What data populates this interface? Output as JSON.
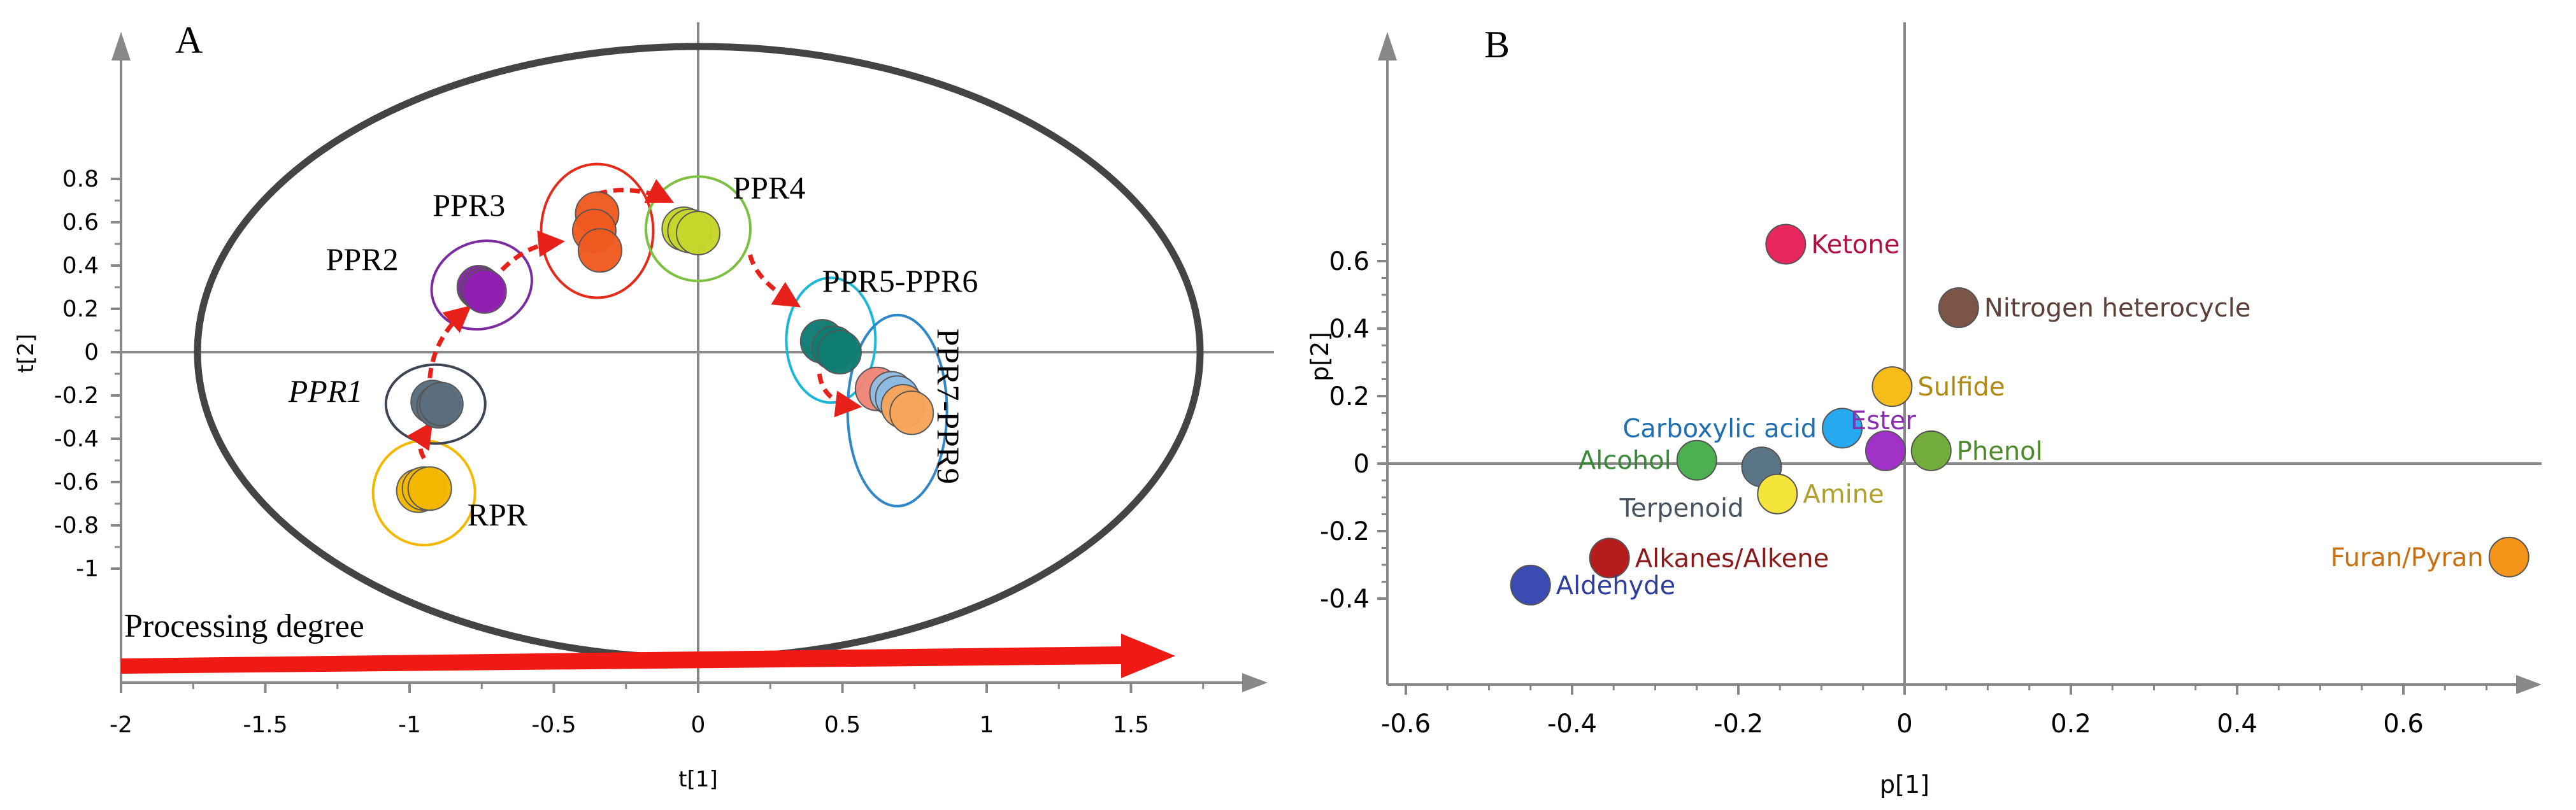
{
  "panels": {
    "A": {
      "label": "A",
      "x_title": "t[1]",
      "y_title": "t[2]",
      "x_ticks": [
        "-2",
        "-1.5",
        "-1",
        "-0.5",
        "0",
        "0.5",
        "1",
        "1.5"
      ],
      "y_ticks": [
        "0.8",
        "0.6",
        "0.4",
        "0.2",
        "0",
        "-0.2",
        "-0.4",
        "-0.6",
        "-0.8",
        "-1"
      ],
      "arrow_label": "Processing degree"
    },
    "B": {
      "label": "B",
      "x_title": "p[1]",
      "y_title": "p[2]",
      "x_ticks": [
        "-0.6",
        "-0.4",
        "-0.2",
        "0",
        "0.2",
        "0.4",
        "0.6"
      ],
      "y_ticks": [
        "0.6",
        "0.4",
        "0.2",
        "0",
        "-0.2",
        "-0.4"
      ]
    }
  },
  "chart_data": [
    {
      "type": "scatter",
      "panel": "A",
      "title": "",
      "xlabel": "t[1]",
      "ylabel": "t[2]",
      "xlim": [
        -2,
        1.8
      ],
      "ylim": [
        -1,
        0.9
      ],
      "grid": false,
      "groups": [
        {
          "name": "RPR",
          "color": "#f5b800",
          "ring": "#f5b800",
          "points": [
            [
              -0.97,
              -0.64
            ],
            [
              -0.95,
              -0.63
            ],
            [
              -0.93,
              -0.63
            ]
          ]
        },
        {
          "name": "PPR1",
          "color": "#5a6e7d",
          "ring": "#3d4654",
          "points": [
            [
              -0.92,
              -0.23
            ],
            [
              -0.9,
              -0.25
            ],
            [
              -0.89,
              -0.24
            ]
          ]
        },
        {
          "name": "PPR2",
          "color": "#8e1fb0",
          "ring": "#7a2ca0",
          "points": [
            [
              -0.76,
              0.3
            ],
            [
              -0.75,
              0.29
            ],
            [
              -0.74,
              0.28
            ]
          ]
        },
        {
          "name": "PPR3",
          "color": "#f05a20",
          "ring": "#e52a1a",
          "points": [
            [
              -0.35,
              0.64
            ],
            [
              -0.36,
              0.56
            ],
            [
              -0.34,
              0.47
            ]
          ]
        },
        {
          "name": "PPR4",
          "color": "#c7d62a",
          "ring": "#7cc040",
          "points": [
            [
              -0.05,
              0.57
            ],
            [
              -0.03,
              0.56
            ],
            [
              0.0,
              0.55
            ]
          ]
        },
        {
          "name": "PPR5-PPR6",
          "color": "#0f7c72",
          "ring": "#1ab7d6",
          "points": [
            [
              0.43,
              0.05
            ],
            [
              0.47,
              0.02
            ],
            [
              0.49,
              0.0
            ]
          ]
        },
        {
          "name": "PPR7-PPR9",
          "color": "#f7a55a",
          "ring": "#2f86c9",
          "points": [
            [
              0.62,
              -0.17
            ],
            [
              0.67,
              -0.19
            ],
            [
              0.69,
              -0.21
            ],
            [
              0.71,
              -0.25
            ],
            [
              0.74,
              -0.28
            ]
          ],
          "point_colors": [
            "#ef8678",
            "#94bde0",
            "#8dbbe3",
            "#f7a55a",
            "#f7a55a"
          ]
        }
      ],
      "arrow_label": "Processing degree"
    },
    {
      "type": "scatter",
      "panel": "B",
      "title": "",
      "xlabel": "p[1]",
      "ylabel": "p[2]",
      "xlim": [
        -0.64,
        0.75
      ],
      "ylim": [
        -0.41,
        0.72
      ],
      "grid": false,
      "points": [
        {
          "label": "Ketone",
          "x": -0.143,
          "y": 0.65,
          "color": "#e8265e",
          "text_color": "#b01043"
        },
        {
          "label": "Nitrogen heterocycle",
          "x": 0.065,
          "y": 0.462,
          "color": "#7a5548",
          "text_color": "#5d4037"
        },
        {
          "label": "Sulfide",
          "x": -0.015,
          "y": 0.228,
          "color": "#f6bd1a",
          "text_color": "#b08a14"
        },
        {
          "label": "Carboxylic acid",
          "x": -0.075,
          "y": 0.105,
          "color": "#27a9ef",
          "text_color": "#1f6fb2"
        },
        {
          "label": "Ester",
          "x": -0.023,
          "y": 0.038,
          "color": "#a032c8",
          "text_color": "#8a2fb0"
        },
        {
          "label": "Phenol",
          "x": 0.032,
          "y": 0.038,
          "color": "#72ac3c",
          "text_color": "#4a8a2a"
        },
        {
          "label": "Alcohol",
          "x": -0.25,
          "y": 0.01,
          "color": "#4caf50",
          "text_color": "#3a8a3a"
        },
        {
          "label": "Terpenoid",
          "x": -0.172,
          "y": -0.01,
          "color": "#5a7586",
          "text_color": "#46535e"
        },
        {
          "label": "Amine",
          "x": -0.153,
          "y": -0.09,
          "color": "#f5e53a",
          "text_color": "#b0a030"
        },
        {
          "label": "Alkanes/Alkene",
          "x": -0.355,
          "y": -0.28,
          "color": "#b71c1c",
          "text_color": "#8b1a1a"
        },
        {
          "label": "Aldehyde",
          "x": -0.45,
          "y": -0.36,
          "color": "#3a4cb4",
          "text_color": "#2f3e9e"
        },
        {
          "label": "Furan/Pyran",
          "x": 0.727,
          "y": -0.277,
          "color": "#f5961a",
          "text_color": "#c8700f"
        }
      ]
    }
  ]
}
